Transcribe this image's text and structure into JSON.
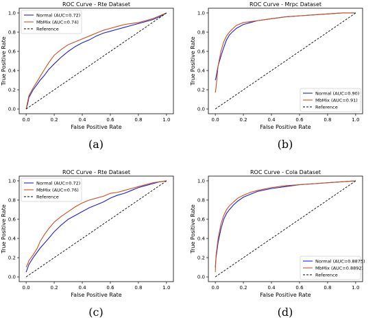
{
  "chart_data": [
    {
      "type": "line",
      "panel_label": "(a)",
      "title": "ROC Curve - Rte Dataset",
      "xlabel": "False Positive Rate",
      "ylabel": "True Positive Rate",
      "xlim": [
        0,
        1
      ],
      "ylim": [
        0,
        1
      ],
      "xticks": [
        "0.0",
        "0.2",
        "0.4",
        "0.6",
        "0.8",
        "1.0"
      ],
      "yticks": [
        "0.0",
        "0.2",
        "0.4",
        "0.6",
        "0.8",
        "1.0"
      ],
      "grid": false,
      "legend_position": "top-left",
      "series": [
        {
          "name": "Normal (AUC=0.72)",
          "color": "#1f1fcc",
          "style": "solid",
          "x": [
            0,
            0.01,
            0.02,
            0.05,
            0.08,
            0.1,
            0.13,
            0.16,
            0.2,
            0.25,
            0.3,
            0.35,
            0.4,
            0.45,
            0.5,
            0.55,
            0.6,
            0.65,
            0.7,
            0.75,
            0.8,
            0.85,
            0.9,
            0.95,
            1.0
          ],
          "y": [
            0,
            0.05,
            0.12,
            0.2,
            0.26,
            0.3,
            0.35,
            0.41,
            0.47,
            0.54,
            0.6,
            0.65,
            0.69,
            0.72,
            0.76,
            0.79,
            0.81,
            0.83,
            0.85,
            0.87,
            0.89,
            0.91,
            0.93,
            0.96,
            1.0
          ]
        },
        {
          "name": "MbMix (AUC=0.74)",
          "color": "#c8501e",
          "style": "solid",
          "x": [
            0,
            0.01,
            0.02,
            0.05,
            0.08,
            0.1,
            0.13,
            0.16,
            0.2,
            0.25,
            0.3,
            0.35,
            0.4,
            0.45,
            0.5,
            0.55,
            0.6,
            0.65,
            0.7,
            0.75,
            0.8,
            0.85,
            0.9,
            0.95,
            1.0
          ],
          "y": [
            0,
            0.07,
            0.14,
            0.22,
            0.29,
            0.34,
            0.41,
            0.48,
            0.56,
            0.62,
            0.67,
            0.7,
            0.73,
            0.76,
            0.79,
            0.82,
            0.84,
            0.86,
            0.88,
            0.89,
            0.9,
            0.92,
            0.94,
            0.97,
            1.0
          ]
        },
        {
          "name": "Reference",
          "color": "#000000",
          "style": "dashed",
          "x": [
            0,
            1
          ],
          "y": [
            0,
            1
          ]
        }
      ]
    },
    {
      "type": "line",
      "panel_label": "(b)",
      "title": "ROC Curve - Mrpc Dataset",
      "xlabel": "False Positive Rate",
      "ylabel": "True Positive Rate",
      "xlim": [
        0,
        1
      ],
      "ylim": [
        0,
        1
      ],
      "xticks": [
        "0.0",
        "0.2",
        "0.4",
        "0.6",
        "0.8",
        "1.0"
      ],
      "yticks": [
        "0.0",
        "0.2",
        "0.4",
        "0.6",
        "0.8",
        "1.0"
      ],
      "grid": false,
      "legend_position": "bottom-right",
      "series": [
        {
          "name": "Normal (AUC=0.90)",
          "color": "#1f1fcc",
          "style": "solid",
          "x": [
            0,
            0.005,
            0.02,
            0.04,
            0.06,
            0.08,
            0.1,
            0.12,
            0.15,
            0.2,
            0.25,
            0.3,
            0.4,
            0.5,
            0.6,
            0.7,
            0.8,
            0.9,
            1.0
          ],
          "y": [
            0.3,
            0.33,
            0.45,
            0.55,
            0.64,
            0.72,
            0.77,
            0.8,
            0.84,
            0.88,
            0.9,
            0.92,
            0.94,
            0.96,
            0.97,
            0.98,
            0.99,
            1.0,
            1.0
          ]
        },
        {
          "name": "MbMix (AUC=0.91)",
          "color": "#c8501e",
          "style": "solid",
          "x": [
            0,
            0.005,
            0.02,
            0.04,
            0.06,
            0.08,
            0.1,
            0.12,
            0.15,
            0.2,
            0.25,
            0.3,
            0.4,
            0.5,
            0.6,
            0.7,
            0.8,
            0.9,
            1.0
          ],
          "y": [
            0.17,
            0.22,
            0.45,
            0.6,
            0.7,
            0.76,
            0.8,
            0.83,
            0.87,
            0.9,
            0.91,
            0.92,
            0.94,
            0.96,
            0.97,
            0.98,
            0.99,
            1.0,
            1.0
          ]
        },
        {
          "name": "Reference",
          "color": "#000000",
          "style": "dashed",
          "x": [
            0,
            1
          ],
          "y": [
            0,
            1
          ]
        }
      ]
    },
    {
      "type": "line",
      "panel_label": "(c)",
      "title": "ROC Curve - Rte Dataset",
      "xlabel": "False Positive Rate",
      "ylabel": "True Positive Rate",
      "xlim": [
        0,
        1
      ],
      "ylim": [
        0,
        1
      ],
      "xticks": [
        "0.0",
        "0.2",
        "0.4",
        "0.6",
        "0.8",
        "1.0"
      ],
      "yticks": [
        "0.0",
        "0.2",
        "0.4",
        "0.6",
        "0.8",
        "1.0"
      ],
      "grid": false,
      "legend_position": "top-left",
      "series": [
        {
          "name": "Normal (AUC=0.72)",
          "color": "#1f1fcc",
          "style": "solid",
          "x": [
            0,
            0.01,
            0.02,
            0.05,
            0.08,
            0.1,
            0.13,
            0.16,
            0.2,
            0.25,
            0.3,
            0.35,
            0.4,
            0.45,
            0.5,
            0.55,
            0.6,
            0.65,
            0.7,
            0.75,
            0.8,
            0.85,
            0.9,
            0.95,
            1.0
          ],
          "y": [
            0.05,
            0.09,
            0.13,
            0.2,
            0.26,
            0.3,
            0.35,
            0.4,
            0.47,
            0.54,
            0.6,
            0.64,
            0.68,
            0.72,
            0.75,
            0.78,
            0.82,
            0.85,
            0.87,
            0.9,
            0.93,
            0.95,
            0.97,
            0.99,
            1.0
          ]
        },
        {
          "name": "MbMix (AUC=0.76)",
          "color": "#c8501e",
          "style": "solid",
          "x": [
            0,
            0.01,
            0.02,
            0.05,
            0.08,
            0.1,
            0.13,
            0.16,
            0.2,
            0.25,
            0.3,
            0.35,
            0.4,
            0.45,
            0.5,
            0.55,
            0.6,
            0.65,
            0.7,
            0.75,
            0.8,
            0.85,
            0.9,
            0.95,
            1.0
          ],
          "y": [
            0.1,
            0.13,
            0.17,
            0.23,
            0.3,
            0.37,
            0.44,
            0.5,
            0.57,
            0.63,
            0.68,
            0.73,
            0.77,
            0.8,
            0.82,
            0.84,
            0.87,
            0.88,
            0.9,
            0.92,
            0.94,
            0.96,
            0.98,
            0.99,
            1.0
          ]
        },
        {
          "name": "Reference",
          "color": "#000000",
          "style": "dashed",
          "x": [
            0,
            1
          ],
          "y": [
            0,
            1
          ]
        }
      ]
    },
    {
      "type": "line",
      "panel_label": "(d)",
      "title": "ROC Curve - Cola Dataset",
      "xlabel": "False Positive Rate",
      "ylabel": "True Positive Rate",
      "xlim": [
        0,
        1
      ],
      "ylim": [
        0,
        1
      ],
      "xticks": [
        "0.0",
        "0.2",
        "0.4",
        "0.6",
        "0.8",
        "1.0"
      ],
      "yticks": [
        "0.0",
        "0.2",
        "0.4",
        "0.6",
        "0.8",
        "1.0"
      ],
      "grid": false,
      "legend_position": "bottom-right",
      "series": [
        {
          "name": "Normal (AUC=0.8875)",
          "color": "#1f1fcc",
          "style": "solid",
          "x": [
            0,
            0.005,
            0.02,
            0.04,
            0.06,
            0.08,
            0.1,
            0.13,
            0.16,
            0.2,
            0.25,
            0.3,
            0.4,
            0.5,
            0.6,
            0.7,
            0.8,
            0.9,
            1.0
          ],
          "y": [
            0.1,
            0.2,
            0.36,
            0.5,
            0.6,
            0.66,
            0.7,
            0.75,
            0.79,
            0.83,
            0.86,
            0.89,
            0.92,
            0.94,
            0.96,
            0.97,
            0.98,
            0.99,
            1.0
          ]
        },
        {
          "name": "MbMix (AUC=0.8892)",
          "color": "#c8501e",
          "style": "solid",
          "x": [
            0,
            0.005,
            0.02,
            0.04,
            0.06,
            0.08,
            0.1,
            0.13,
            0.16,
            0.2,
            0.25,
            0.3,
            0.4,
            0.5,
            0.6,
            0.7,
            0.8,
            0.9,
            1.0
          ],
          "y": [
            0.05,
            0.22,
            0.4,
            0.55,
            0.64,
            0.7,
            0.74,
            0.78,
            0.82,
            0.85,
            0.88,
            0.9,
            0.93,
            0.95,
            0.96,
            0.97,
            0.98,
            0.99,
            1.0
          ]
        },
        {
          "name": "Reference",
          "color": "#000000",
          "style": "dashed",
          "x": [
            0,
            1
          ],
          "y": [
            0,
            1
          ]
        }
      ]
    }
  ]
}
